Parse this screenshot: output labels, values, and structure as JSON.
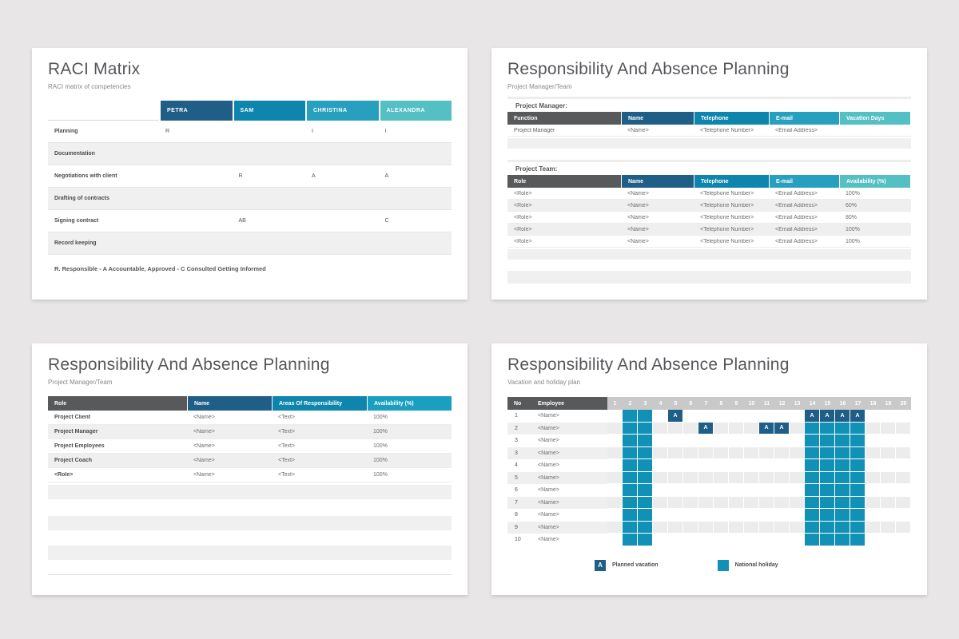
{
  "page": {
    "background": "#e8e6e7"
  },
  "colors": {
    "header_gray": "#58595b",
    "dark_blue": "#1e5e87",
    "mid_blue": "#0e85ac",
    "cyan_blue": "#27a0c0",
    "teal": "#54c0c4",
    "holiday_teal": "#1191b5",
    "planned_blue": "#1e5e87",
    "day_band_gray": "#c9c9c9"
  },
  "slides": {
    "raci": {
      "title": "RACI Matrix",
      "subtitle": "RACI matrix of competencies",
      "columns": [
        {
          "label": "PETRA",
          "color": "#1e5e87"
        },
        {
          "label": "SAM",
          "color": "#0e85ac"
        },
        {
          "label": "CHRISTINA",
          "color": "#27a0c0"
        },
        {
          "label": "ALEXANDRA",
          "color": "#54c0c4"
        }
      ],
      "rows": [
        {
          "label": "Planning",
          "values": [
            "R",
            "",
            "I",
            "I"
          ]
        },
        {
          "label": "Documentation",
          "values": [
            "",
            "",
            "",
            ""
          ]
        },
        {
          "label": "Negotiations with client",
          "values": [
            "",
            "R",
            "A",
            "A"
          ]
        },
        {
          "label": "Drafting of contracts",
          "values": [
            "",
            "",
            "",
            ""
          ]
        },
        {
          "label": "Signing contract",
          "values": [
            "",
            "AB",
            "",
            "C"
          ]
        },
        {
          "label": "Record keeping",
          "values": [
            "",
            "",
            "",
            ""
          ]
        }
      ],
      "footnote": "R. Responsible - A Accountable, Approved - C Consulted Getting Informed"
    },
    "pm_team": {
      "title": "Responsibility And Absence Planning",
      "subtitle": "Project Manager/Team",
      "manager": {
        "label": "Project Manager:",
        "headers": [
          {
            "label": "Function",
            "color": "#58595b"
          },
          {
            "label": "Name",
            "color": "#1e5e87"
          },
          {
            "label": "Telephone",
            "color": "#0e85ac"
          },
          {
            "label": "E-mail",
            "color": "#27a0c0"
          },
          {
            "label": "Vacation Days",
            "color": "#54c0c4"
          }
        ],
        "rows": [
          [
            "Project Manager",
            "<Name>",
            "<Telephone Number>",
            "<Email Address>",
            ""
          ]
        ]
      },
      "team": {
        "label": "Project Team:",
        "headers": [
          {
            "label": "Role",
            "color": "#58595b"
          },
          {
            "label": "Name",
            "color": "#1e5e87"
          },
          {
            "label": "Telephone",
            "color": "#0e85ac"
          },
          {
            "label": "E-mail",
            "color": "#27a0c0"
          },
          {
            "label": "Availability (%)",
            "color": "#54c0c4"
          }
        ],
        "rows": [
          [
            "<Role>",
            "<Name>",
            "<Telephone Number>",
            "<Email Address>",
            "100%"
          ],
          [
            "<Role>",
            "<Name>",
            "<Telephone Number>",
            "<Email Address>",
            "60%"
          ],
          [
            "<Role>",
            "<Name>",
            "<Telephone Number>",
            "<Email Address>",
            "80%"
          ],
          [
            "<Role>",
            "<Name>",
            "<Telephone Number>",
            "<Email Address>",
            "100%"
          ],
          [
            "<Role>",
            "<Name>",
            "<Telephone Number>",
            "<Email Address>",
            "100%"
          ]
        ]
      }
    },
    "roles": {
      "title": "Responsibility And Absence Planning",
      "subtitle": "Project Manager/Team",
      "headers": [
        {
          "label": "Role",
          "color": "#58595b"
        },
        {
          "label": "Name",
          "color": "#1e5e87"
        },
        {
          "label": "Areas Of Responsibility",
          "color": "#0e85ac"
        },
        {
          "label": "Availability (%)",
          "color": "#1b9fc1"
        }
      ],
      "rows": [
        [
          "Project Client",
          "<Name>",
          "<Text>",
          "100%"
        ],
        [
          "Project Manager",
          "<Name>",
          "<Text>",
          "100%"
        ],
        [
          "Project Employees",
          "<Name>",
          "<Text>",
          "100%"
        ],
        [
          "Project Coach",
          "<Name>",
          "<Text>",
          "100%"
        ],
        [
          "<Role>",
          "<Name>",
          "<Text>",
          "100%"
        ]
      ]
    },
    "vacation": {
      "title": "Responsibility And Absence Planning",
      "subtitle": "Vacation and holiday plan",
      "no_header": "No",
      "employee_header": "Employee",
      "days": [
        1,
        2,
        3,
        4,
        5,
        6,
        7,
        8,
        9,
        10,
        11,
        12,
        13,
        14,
        15,
        16,
        17,
        18,
        19,
        20
      ],
      "planned_mark": "A",
      "rows": [
        {
          "no": "1",
          "name": "<Name>",
          "planned": [
            5,
            14,
            15,
            16,
            17
          ],
          "holiday": [
            2,
            3
          ]
        },
        {
          "no": "2",
          "name": "<Name>",
          "planned": [
            7,
            11,
            12
          ],
          "holiday": [
            2,
            3,
            14,
            15,
            16,
            17
          ]
        },
        {
          "no": "3",
          "name": "<Name>",
          "planned": [],
          "holiday": [
            2,
            3,
            14,
            15,
            16,
            17
          ]
        },
        {
          "no": "3",
          "name": "<Name>",
          "planned": [],
          "holiday": [
            2,
            3,
            14,
            15,
            16,
            17
          ]
        },
        {
          "no": "4",
          "name": "<Name>",
          "planned": [],
          "holiday": [
            2,
            3,
            14,
            15,
            16,
            17
          ]
        },
        {
          "no": "5",
          "name": "<Name>",
          "planned": [],
          "holiday": [
            2,
            3,
            14,
            15,
            16,
            17
          ]
        },
        {
          "no": "6",
          "name": "<Name>",
          "planned": [],
          "holiday": [
            2,
            3,
            14,
            15,
            16,
            17
          ]
        },
        {
          "no": "7",
          "name": "<Name>",
          "planned": [],
          "holiday": [
            2,
            3,
            14,
            15,
            16,
            17
          ]
        },
        {
          "no": "8",
          "name": "<Name>",
          "planned": [],
          "holiday": [
            2,
            3,
            14,
            15,
            16,
            17
          ]
        },
        {
          "no": "9",
          "name": "<Name>",
          "planned": [],
          "holiday": [
            2,
            3,
            14,
            15,
            16,
            17
          ]
        },
        {
          "no": "10",
          "name": "<Name>",
          "planned": [],
          "holiday": [
            2,
            3,
            14,
            15,
            16,
            17
          ]
        }
      ],
      "legend": [
        {
          "mark": "A",
          "label": "Planned vacation",
          "color": "#1e5e87"
        },
        {
          "mark": "",
          "label": "National holiday",
          "color": "#1191b5"
        }
      ]
    }
  }
}
